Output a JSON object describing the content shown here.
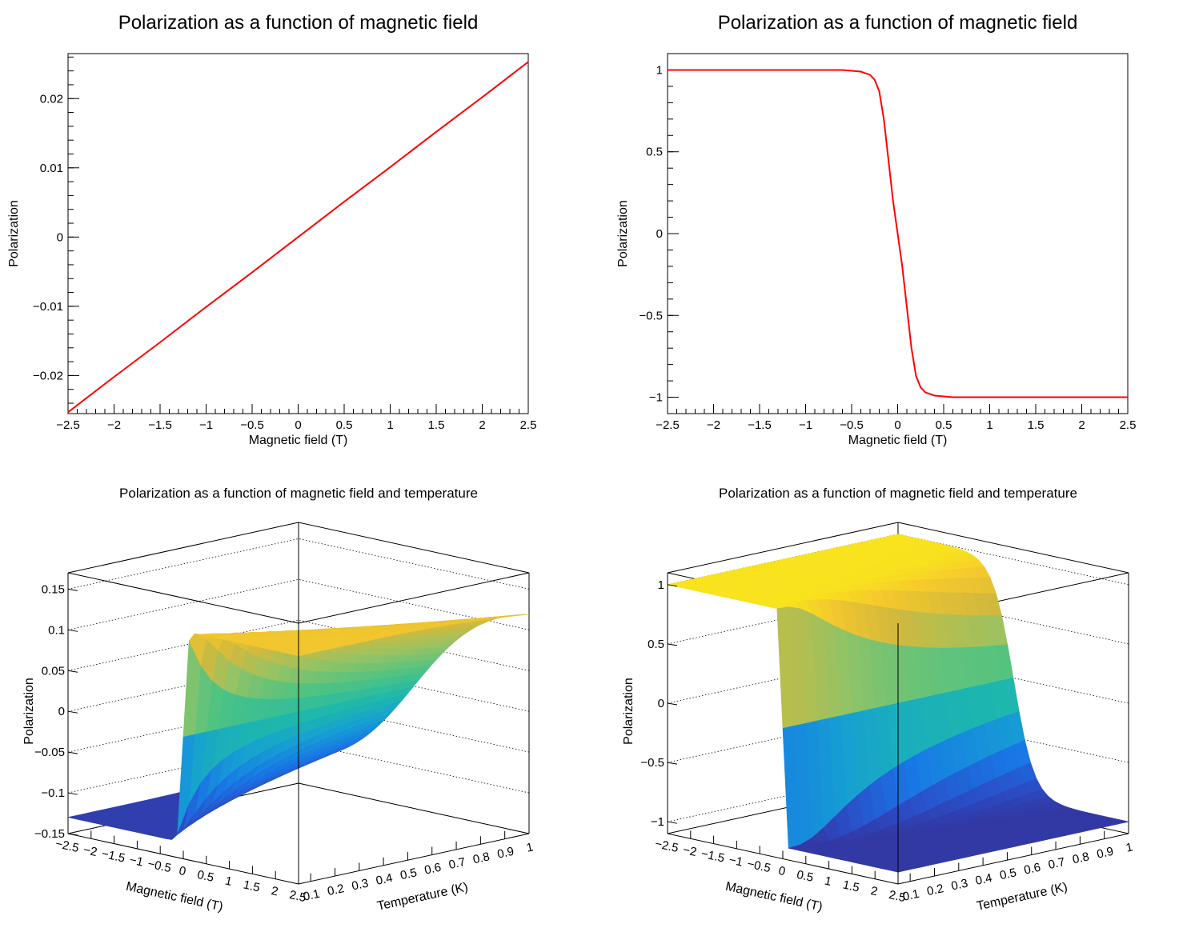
{
  "chart_data": [
    {
      "type": "line",
      "title": "Polarization as a function of magnetic field",
      "xlabel": "Magnetic field (T)",
      "ylabel": "Polarization",
      "xlim": [
        -2.5,
        2.5
      ],
      "ylim": [
        -0.0255,
        0.0265
      ],
      "x_ticks": [
        "−2.5",
        "−2",
        "−1.5",
        "−1",
        "−0.5",
        "0",
        "0.5",
        "1",
        "1.5",
        "2",
        "2.5"
      ],
      "y_ticks": [
        "−0.02",
        "−0.01",
        "0",
        "0.01",
        "0.02"
      ],
      "series": [
        {
          "color": "#ff0000",
          "x": [
            -2.5,
            -2.0,
            -1.5,
            -1.0,
            -0.5,
            0.0,
            0.5,
            1.0,
            1.5,
            2.0,
            2.5
          ],
          "y": [
            -0.0253,
            -0.0202,
            -0.0152,
            -0.0101,
            -0.0051,
            0.0,
            0.0051,
            0.0101,
            0.0152,
            0.0202,
            0.0253
          ]
        }
      ]
    },
    {
      "type": "line",
      "title": "Polarization as a function of magnetic field",
      "xlabel": "Magnetic field (T)",
      "ylabel": "Polarization",
      "xlim": [
        -2.5,
        2.5
      ],
      "ylim": [
        -1.1,
        1.1
      ],
      "x_ticks": [
        "−2.5",
        "−2",
        "−1.5",
        "−1",
        "−0.5",
        "0",
        "0.5",
        "1",
        "1.5",
        "2",
        "2.5"
      ],
      "y_ticks": [
        "−1",
        "−0.5",
        "0",
        "0.5",
        "1"
      ],
      "series": [
        {
          "color": "#ff0000",
          "x": [
            -2.5,
            -1.0,
            -0.6,
            -0.4,
            -0.3,
            -0.25,
            -0.2,
            -0.15,
            -0.1,
            -0.05,
            0.0,
            0.05,
            0.1,
            0.15,
            0.2,
            0.25,
            0.3,
            0.4,
            0.6,
            1.0,
            2.5
          ],
          "y": [
            1.0,
            1.0,
            1.0,
            0.99,
            0.97,
            0.94,
            0.87,
            0.7,
            0.45,
            0.2,
            0.0,
            -0.2,
            -0.45,
            -0.7,
            -0.87,
            -0.94,
            -0.97,
            -0.99,
            -1.0,
            -1.0,
            -1.0
          ]
        }
      ]
    },
    {
      "type": "surface",
      "title": "Polarization as a function of magnetic field and temperature",
      "xlabel": "Magnetic field (T)",
      "ylabel": "Temperature (K)",
      "zlabel": "Polarization",
      "xlim": [
        -2.5,
        2.5
      ],
      "ylim": [
        0.05,
        1.0
      ],
      "zlim": [
        -0.15,
        0.17
      ],
      "x_ticks": [
        "−2.5",
        "−2",
        "−1.5",
        "−1",
        "−0.5",
        "0",
        "0.5",
        "1",
        "1.5",
        "2",
        "2.5"
      ],
      "y_ticks": [
        "0.1",
        "0.2",
        "0.3",
        "0.4",
        "0.5",
        "0.6",
        "0.7",
        "0.8",
        "0.9",
        "1"
      ],
      "z_ticks": [
        "−0.15",
        "−0.1",
        "−0.05",
        "0",
        "0.05",
        "0.1",
        "0.15"
      ],
      "model": "tanh(B/(1.5*T))"
    },
    {
      "type": "surface",
      "title": "Polarization as a function of magnetic field and temperature",
      "xlabel": "Magnetic field (T)",
      "ylabel": "Temperature (K)",
      "zlabel": "Polarization",
      "xlim": [
        -2.5,
        2.5
      ],
      "ylim": [
        0.05,
        1.0
      ],
      "zlim": [
        -1.1,
        1.1
      ],
      "x_ticks": [
        "−2.5",
        "−2",
        "−1.5",
        "−1",
        "−0.5",
        "0",
        "0.5",
        "1",
        "1.5",
        "2",
        "2.5"
      ],
      "y_ticks": [
        "0.1",
        "0.2",
        "0.3",
        "0.4",
        "0.5",
        "0.6",
        "0.7",
        "0.8",
        "0.9",
        "1"
      ],
      "z_ticks": [
        "−1",
        "−0.5",
        "0",
        "0.5",
        "1"
      ],
      "model": "-tanh(B/(1.5*T))"
    }
  ]
}
